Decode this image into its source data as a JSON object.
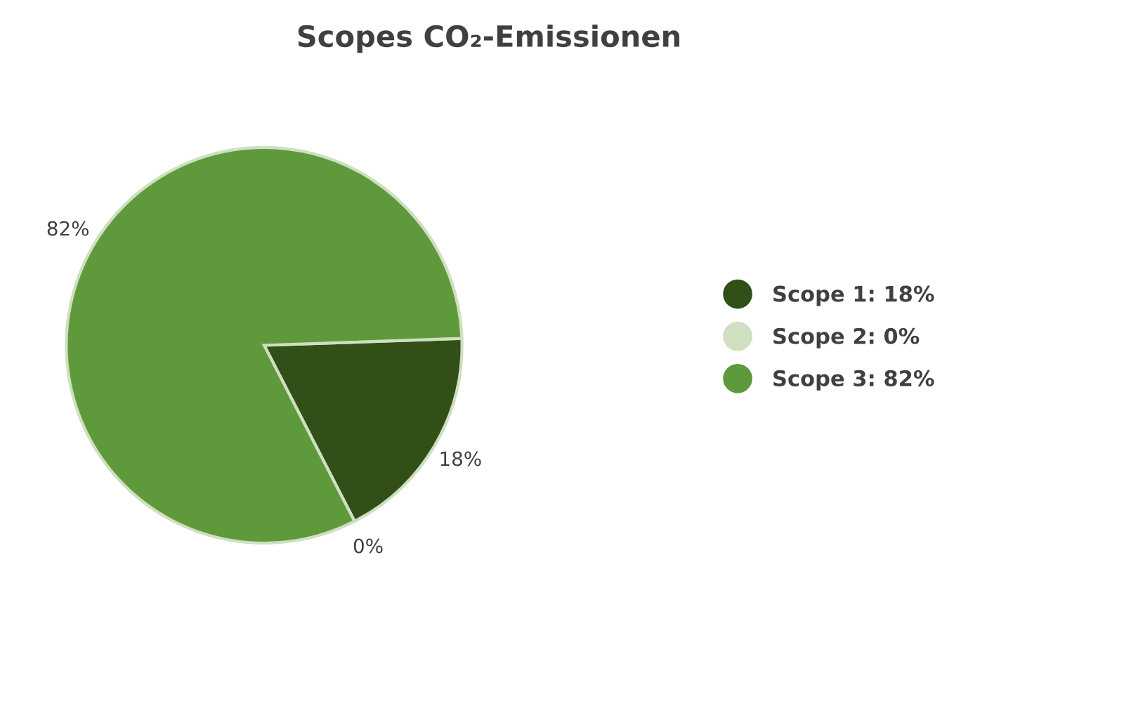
{
  "chart_data": {
    "type": "pie",
    "title": "Scopes CO₂-Emissionen",
    "categories": [
      "Scope 1: 18%",
      "Scope 2: 0%",
      "Scope 3: 82%"
    ],
    "values": [
      18,
      0,
      82
    ],
    "colors": [
      "#314f16",
      "#cfdfc0",
      "#5e9a3c"
    ],
    "value_labels": [
      "18%",
      "0%",
      "82%"
    ],
    "legend": "right"
  }
}
